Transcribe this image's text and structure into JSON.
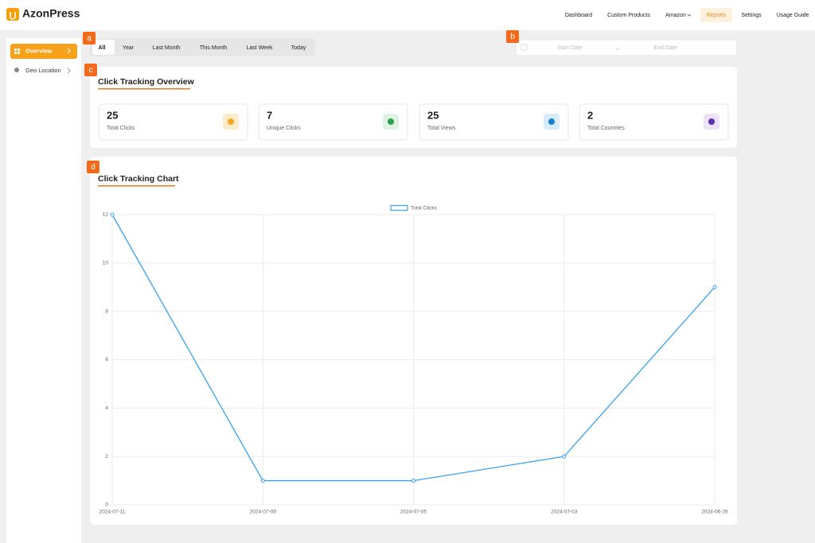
{
  "header": {
    "logo": "AzonPress",
    "nav": [
      "Dashboard",
      "Custom Products",
      "Amazon",
      "Reports",
      "Settings",
      "Usage Guide"
    ]
  },
  "sidebar": [
    "Overview",
    "Geo Location"
  ],
  "filters": {
    "tabs": [
      "All",
      "Year",
      "Last Month",
      "This Month",
      "Last Week",
      "Today"
    ],
    "start_date": "Start Date",
    "separator": "-",
    "end_date": "End Date"
  },
  "badges": [
    "a",
    "b",
    "c",
    "d"
  ],
  "overview": {
    "title": "Click Tracking Overview",
    "stats": [
      {
        "value": 25,
        "label": "Total Clicks"
      },
      {
        "value": 7,
        "label": "Unique Clicks"
      },
      {
        "value": 25,
        "label": "Total Views"
      },
      {
        "value": 2,
        "label": "Total Countries"
      }
    ]
  },
  "chart_data": {
    "type": "line",
    "title": "Click Tracking Chart",
    "categories": [
      "2024-07-11",
      "2024-07-09",
      "2024-07-05",
      "2024-07-03",
      "2024-06-28"
    ],
    "series": [
      {
        "name": "Total Clicks",
        "color": "#36a2eb",
        "values": [
          12,
          1,
          1,
          2,
          9
        ]
      }
    ],
    "ylim": [
      0,
      12
    ],
    "yticks": [
      0,
      2,
      4,
      6,
      8,
      10,
      12
    ],
    "grid": true
  }
}
